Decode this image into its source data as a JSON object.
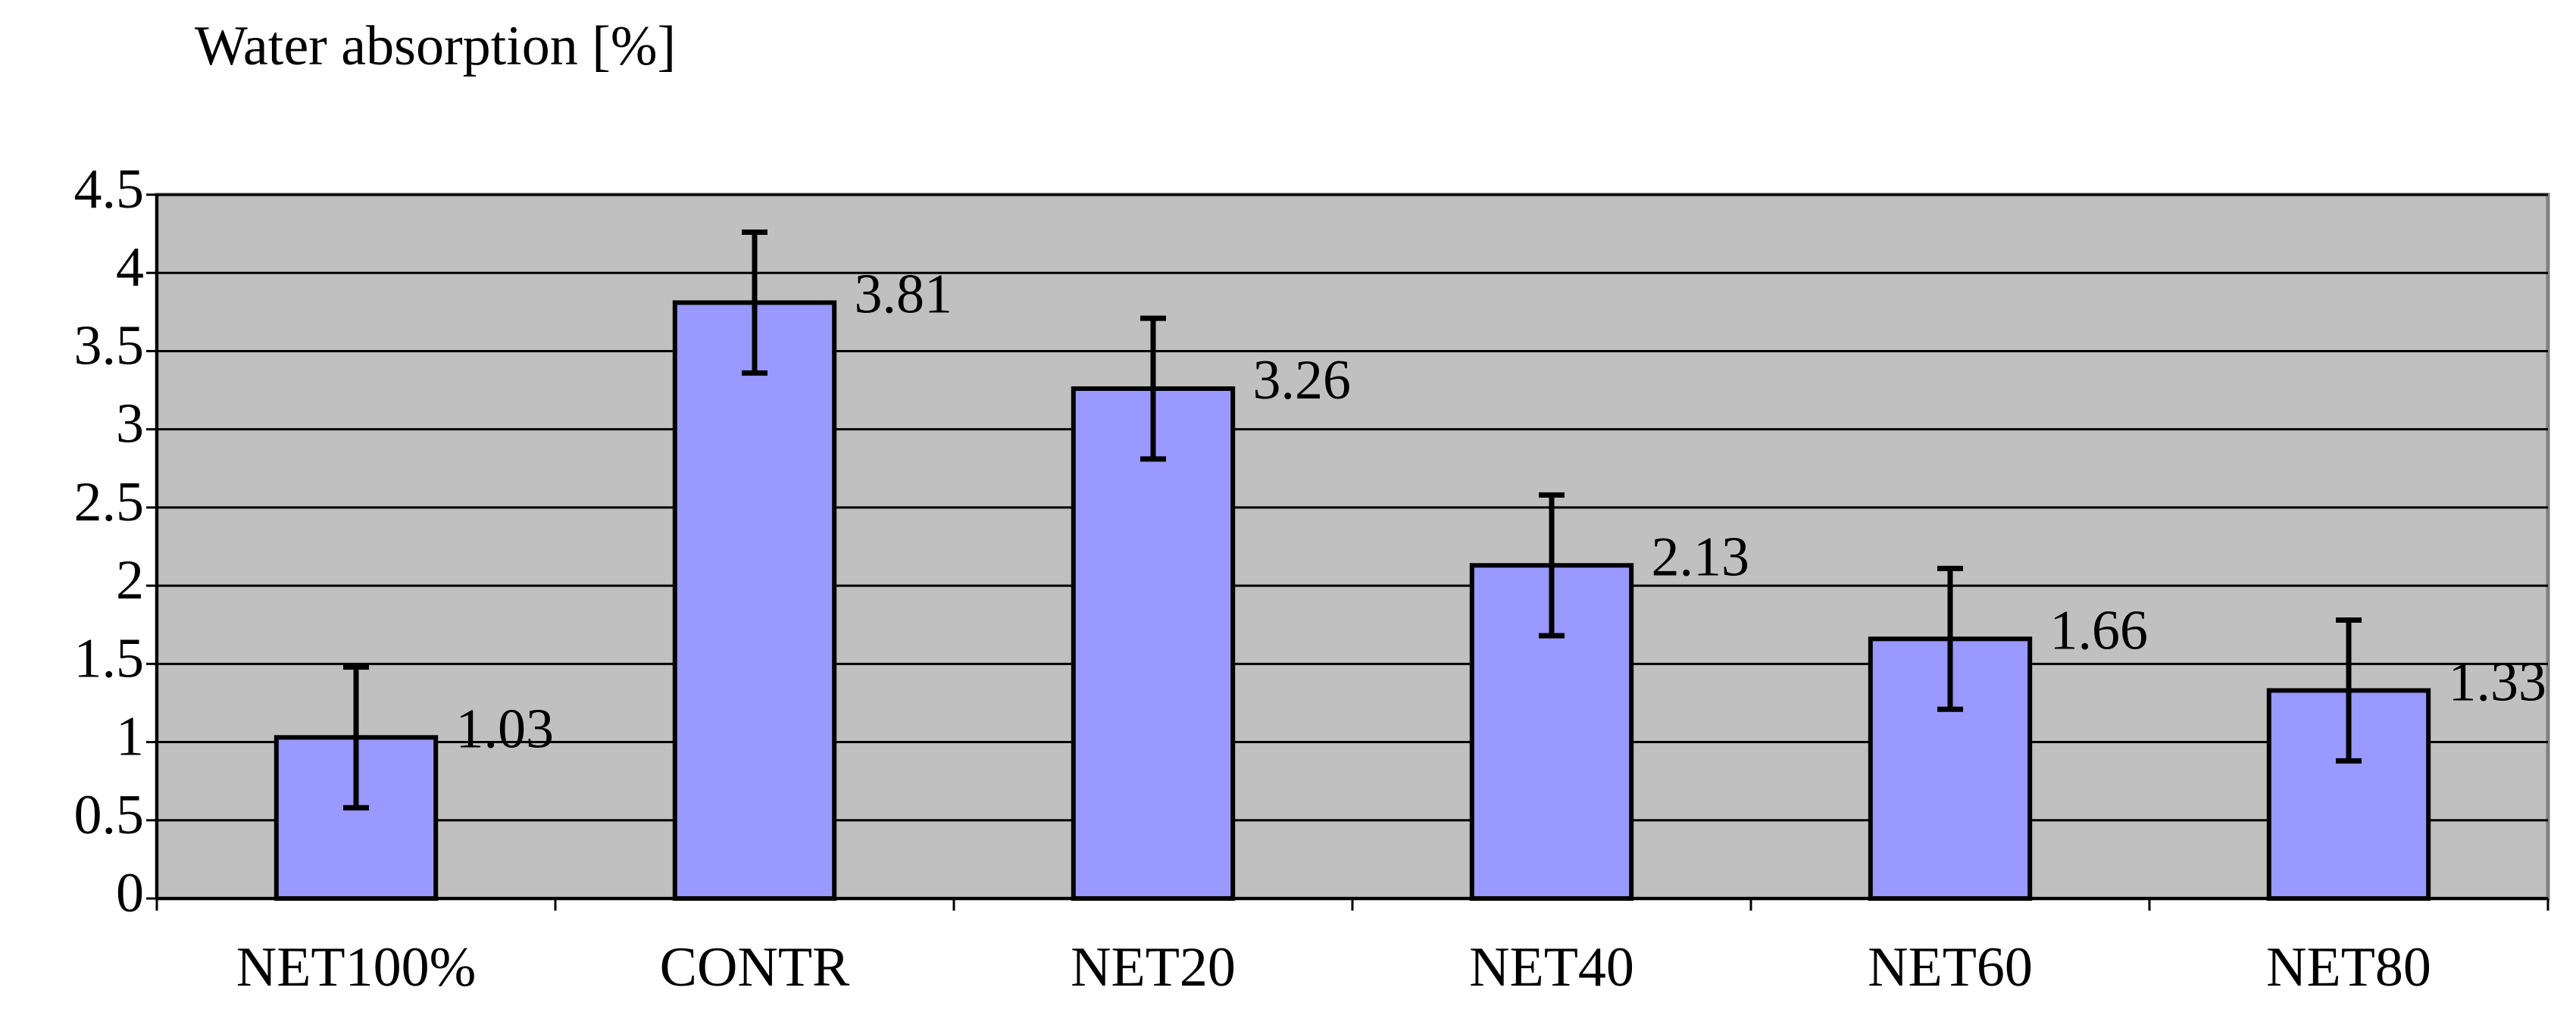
{
  "chart_data": {
    "type": "bar",
    "title": "Water absorption [%]",
    "categories": [
      "NET100%",
      "CONTR",
      "NET20",
      "NET40",
      "NET60",
      "NET80"
    ],
    "values": [
      1.03,
      3.81,
      3.26,
      2.13,
      1.66,
      1.33
    ],
    "errors": [
      0.45,
      0.45,
      0.45,
      0.45,
      0.45,
      0.45
    ],
    "color": "#9999ff",
    "ylim": [
      0,
      4.5
    ],
    "yticks": [
      0,
      0.5,
      1,
      1.5,
      2,
      2.5,
      3,
      3.5,
      4,
      4.5
    ],
    "grid": true
  }
}
